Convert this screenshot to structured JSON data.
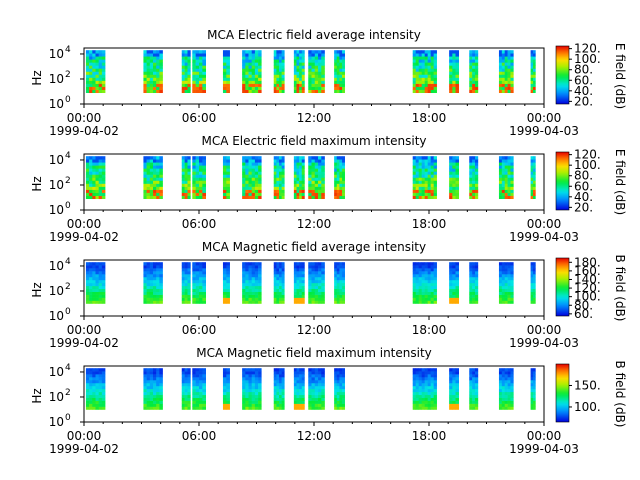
{
  "chart_data": [
    {
      "type": "heatmap",
      "title": "MCA  Electric field average intensity",
      "ylabel": "Hz",
      "yscale": "log",
      "ylim": [
        1,
        30000
      ],
      "y_ticks": [
        {
          "value": 1,
          "base": "10",
          "exp": "0"
        },
        {
          "value": 100,
          "base": "10",
          "exp": "2"
        },
        {
          "value": 10000,
          "base": "10",
          "exp": "4"
        }
      ],
      "xlim": [
        "1999-04-02 00:00",
        "1999-04-03 00:00"
      ],
      "x_ticks": [
        {
          "time": "00:00",
          "date": "1999-04-02"
        },
        {
          "time": "06:00",
          "date": ""
        },
        {
          "time": "12:00",
          "date": ""
        },
        {
          "time": "18:00",
          "date": ""
        },
        {
          "time": "00:00",
          "date": "1999-04-03"
        }
      ],
      "colorbar_label": "E field (dB)",
      "colorbar_range": [
        15,
        125
      ],
      "colorbar_ticks": [
        "20.",
        "40.",
        "60.",
        "80.",
        "100.",
        "120."
      ],
      "colormap": "rainbow",
      "pattern": "electric",
      "data_segments_hours": [
        [
          0.1,
          1.1
        ],
        [
          3.1,
          4.1
        ],
        [
          5.1,
          5.55
        ],
        [
          5.65,
          6.35
        ],
        [
          7.25,
          7.6
        ],
        [
          8.25,
          9.25
        ],
        [
          9.9,
          10.45
        ],
        [
          10.95,
          11.5
        ],
        [
          11.7,
          12.55
        ],
        [
          13.05,
          13.6
        ],
        [
          17.15,
          18.4
        ],
        [
          19.05,
          19.55
        ],
        [
          20.1,
          20.55
        ],
        [
          21.65,
          22.4
        ],
        [
          23.3,
          23.55
        ]
      ]
    },
    {
      "type": "heatmap",
      "title": "MCA  Electric field maximum intensity",
      "ylabel": "Hz",
      "yscale": "log",
      "ylim": [
        1,
        30000
      ],
      "y_ticks": [
        {
          "value": 1,
          "base": "10",
          "exp": "0"
        },
        {
          "value": 100,
          "base": "10",
          "exp": "2"
        },
        {
          "value": 10000,
          "base": "10",
          "exp": "4"
        }
      ],
      "xlim": [
        "1999-04-02 00:00",
        "1999-04-03 00:00"
      ],
      "x_ticks": [
        {
          "time": "00:00",
          "date": "1999-04-02"
        },
        {
          "time": "06:00",
          "date": ""
        },
        {
          "time": "12:00",
          "date": ""
        },
        {
          "time": "18:00",
          "date": ""
        },
        {
          "time": "00:00",
          "date": "1999-04-03"
        }
      ],
      "colorbar_label": "E field (dB)",
      "colorbar_range": [
        15,
        125
      ],
      "colorbar_ticks": [
        "20.",
        "40.",
        "60.",
        "80.",
        "100.",
        "120."
      ],
      "colormap": "rainbow",
      "pattern": "electric",
      "data_segments_hours": [
        [
          0.1,
          1.1
        ],
        [
          3.1,
          4.1
        ],
        [
          5.1,
          5.55
        ],
        [
          5.65,
          6.35
        ],
        [
          7.25,
          7.6
        ],
        [
          8.25,
          9.25
        ],
        [
          9.9,
          10.45
        ],
        [
          10.95,
          11.5
        ],
        [
          11.7,
          12.55
        ],
        [
          13.05,
          13.6
        ],
        [
          17.15,
          18.4
        ],
        [
          19.05,
          19.55
        ],
        [
          20.1,
          20.55
        ],
        [
          21.65,
          22.4
        ],
        [
          23.3,
          23.55
        ]
      ]
    },
    {
      "type": "heatmap",
      "title": "MCA  Magnetic field average intensity",
      "ylabel": "Hz",
      "yscale": "log",
      "ylim": [
        1,
        30000
      ],
      "y_ticks": [
        {
          "value": 1,
          "base": "10",
          "exp": "0"
        },
        {
          "value": 100,
          "base": "10",
          "exp": "2"
        },
        {
          "value": 10000,
          "base": "10",
          "exp": "4"
        }
      ],
      "xlim": [
        "1999-04-02 00:00",
        "1999-04-03 00:00"
      ],
      "x_ticks": [
        {
          "time": "00:00",
          "date": "1999-04-02"
        },
        {
          "time": "06:00",
          "date": ""
        },
        {
          "time": "12:00",
          "date": ""
        },
        {
          "time": "18:00",
          "date": ""
        },
        {
          "time": "00:00",
          "date": "1999-04-03"
        }
      ],
      "colorbar_label": "B field (dB)",
      "colorbar_range": [
        55,
        190
      ],
      "colorbar_ticks": [
        "60.",
        "80.",
        "100.",
        "120.",
        "140.",
        "160.",
        "180."
      ],
      "colormap": "rainbow",
      "pattern": "magnetic",
      "data_segments_hours": [
        [
          0.1,
          1.1
        ],
        [
          3.1,
          4.1
        ],
        [
          5.1,
          5.55
        ],
        [
          5.65,
          6.35
        ],
        [
          7.25,
          7.6
        ],
        [
          8.25,
          9.25
        ],
        [
          9.9,
          10.45
        ],
        [
          10.95,
          11.5
        ],
        [
          11.7,
          12.55
        ],
        [
          13.05,
          13.6
        ],
        [
          17.15,
          18.4
        ],
        [
          19.05,
          19.55
        ],
        [
          20.1,
          20.55
        ],
        [
          21.65,
          22.4
        ],
        [
          23.3,
          23.55
        ]
      ]
    },
    {
      "type": "heatmap",
      "title": "MCA  Magnetic field maximum intensity",
      "ylabel": "Hz",
      "yscale": "log",
      "ylim": [
        1,
        30000
      ],
      "y_ticks": [
        {
          "value": 1,
          "base": "10",
          "exp": "0"
        },
        {
          "value": 100,
          "base": "10",
          "exp": "2"
        },
        {
          "value": 10000,
          "base": "10",
          "exp": "4"
        }
      ],
      "xlim": [
        "1999-04-02 00:00",
        "1999-04-03 00:00"
      ],
      "x_ticks": [
        {
          "time": "00:00",
          "date": "1999-04-02"
        },
        {
          "time": "06:00",
          "date": ""
        },
        {
          "time": "12:00",
          "date": ""
        },
        {
          "time": "18:00",
          "date": ""
        },
        {
          "time": "00:00",
          "date": "1999-04-03"
        }
      ],
      "colorbar_label": "B field (dB)",
      "colorbar_range": [
        65,
        200
      ],
      "colorbar_ticks": [
        "100.",
        "150."
      ],
      "colorbar_tick_values": [
        100,
        150
      ],
      "colormap": "rainbow",
      "pattern": "magnetic",
      "data_segments_hours": [
        [
          0.1,
          1.1
        ],
        [
          3.1,
          4.1
        ],
        [
          5.1,
          5.55
        ],
        [
          5.65,
          6.35
        ],
        [
          7.25,
          7.6
        ],
        [
          8.25,
          9.25
        ],
        [
          9.9,
          10.45
        ],
        [
          10.95,
          11.5
        ],
        [
          11.7,
          12.55
        ],
        [
          13.05,
          13.6
        ],
        [
          17.15,
          18.4
        ],
        [
          19.05,
          19.55
        ],
        [
          20.1,
          20.55
        ],
        [
          21.65,
          22.4
        ],
        [
          23.3,
          23.55
        ]
      ]
    }
  ]
}
